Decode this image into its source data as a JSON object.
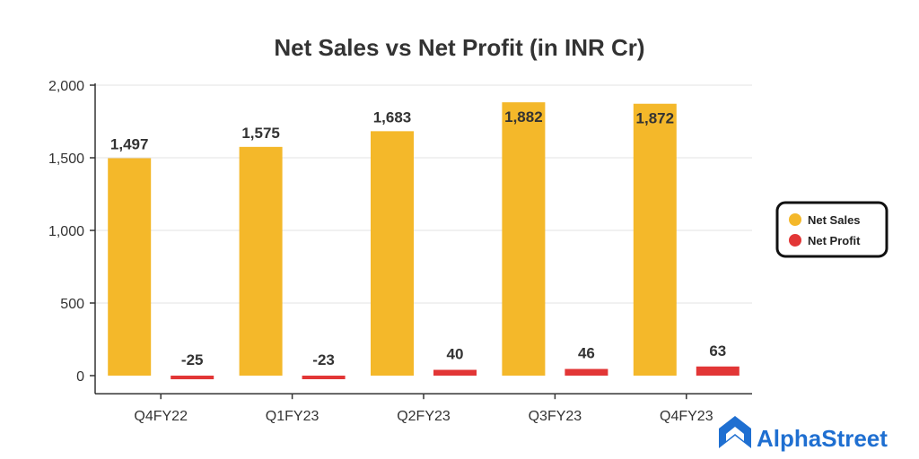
{
  "chart_data": {
    "type": "bar",
    "title": "Net Sales vs Net Profit (in INR Cr)",
    "categories": [
      "Q4FY22",
      "Q1FY23",
      "Q2FY23",
      "Q3FY23",
      "Q4FY23"
    ],
    "series": [
      {
        "name": "Net Sales",
        "color": "#f4b82a",
        "values": [
          1497,
          1575,
          1683,
          1882,
          1872
        ],
        "labels": [
          "1,497",
          "1,575",
          "1,683",
          "1,882",
          "1,872"
        ]
      },
      {
        "name": "Net Profit",
        "color": "#e23636",
        "values": [
          -25,
          -23,
          40,
          46,
          63
        ],
        "labels": [
          "-25",
          "-23",
          "40",
          "46",
          "63"
        ]
      }
    ],
    "ylim": [
      -100,
      2000
    ],
    "yticks": [
      0,
      500,
      1000,
      1500,
      2000
    ],
    "ytick_labels": [
      "0",
      "500",
      "1,000",
      "1,500",
      "2,000"
    ],
    "grid": true,
    "legend_position": "right"
  },
  "brand": {
    "name": "AlphaStreet",
    "icon": "alphastreet-logo-icon",
    "color": "#1f6fd1"
  }
}
